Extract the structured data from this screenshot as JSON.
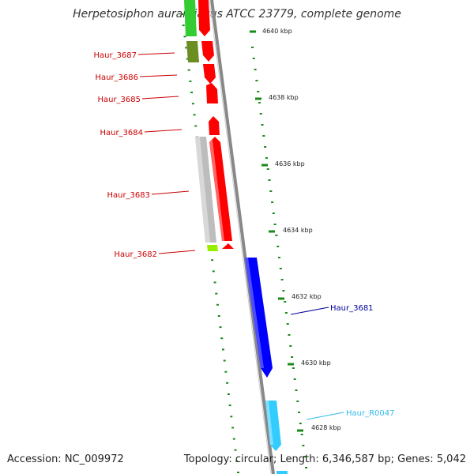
{
  "title": "Herpetosiphon aurantiacus ATCC 23779, complete genome",
  "footer": {
    "accession": "Accession: NC_009972",
    "topology": "Topology: circular; Length: 6,346,587 bp; Genes: 5,042"
  },
  "colors": {
    "forward_cds": "#ff0000",
    "reverse_cds": "#0000ff",
    "trna": "#33ccff",
    "gray_feature": "#bdbdbd",
    "green_feature": "#33cc33",
    "olive_feature": "#6b8e23",
    "lime_feature": "#99ee00",
    "tick_green": "#1a8a1a",
    "backbone": "#888888"
  },
  "ticks": [
    "4640 kbp",
    "4638 kbp",
    "4636 kbp",
    "4634 kbp",
    "4632 kbp",
    "4630 kbp",
    "4628 kbp"
  ],
  "genes_left": [
    "Haur_3687",
    "Haur_3686",
    "Haur_3685",
    "Haur_3684",
    "Haur_3683",
    "Haur_3682"
  ],
  "genes_right": [
    "Haur_3681",
    "Haur_R0047"
  ]
}
